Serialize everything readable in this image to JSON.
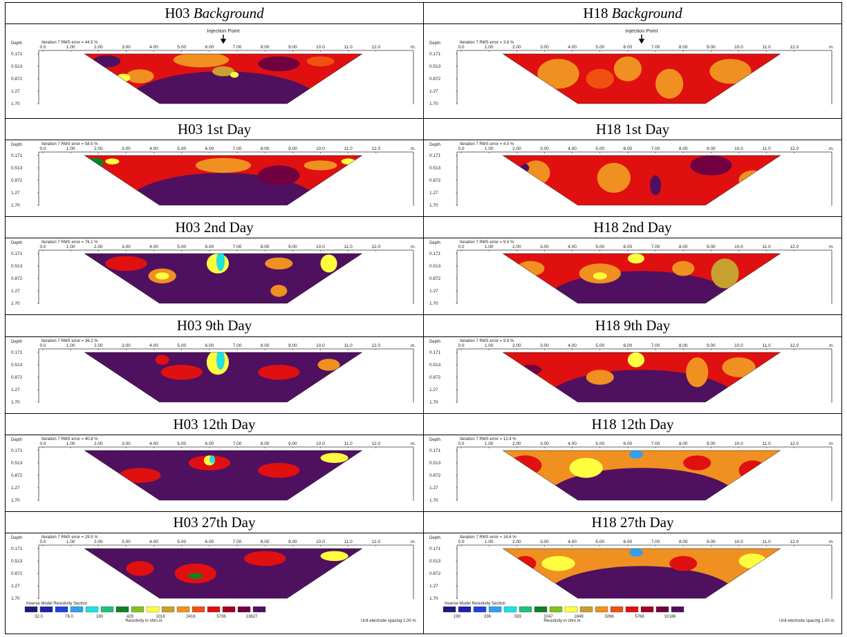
{
  "panels": [
    {
      "title": "H03",
      "suffix": "Background",
      "italic": true,
      "rms": "Iteration 7 RMS error = 44.5 %",
      "injection": true,
      "legend": false
    },
    {
      "title": "H18",
      "suffix": "Background",
      "italic": true,
      "rms": "Iteration 7 RMS error = 3.6 %",
      "injection": true,
      "legend": false
    },
    {
      "title": "H03 1st Day",
      "suffix": "",
      "italic": false,
      "rms": "Iteration 7 RMS error = 58.5 %",
      "injection": false,
      "legend": false
    },
    {
      "title": "H18 1st Day",
      "suffix": "",
      "italic": false,
      "rms": "Iteration 7 RMS error = 4.0 %",
      "injection": false,
      "legend": false
    },
    {
      "title": "H03 2nd Day",
      "suffix": "",
      "italic": false,
      "rms": "Iteration 7 RMS error = 76.1 %",
      "injection": false,
      "legend": false
    },
    {
      "title": "H18 2nd Day",
      "suffix": "",
      "italic": false,
      "rms": "Iteration 7 RMS error = 9.4 %",
      "injection": false,
      "legend": false
    },
    {
      "title": "H03 9th Day",
      "suffix": "",
      "italic": false,
      "rms": "Iteration 7 RMS error = 36.2 %",
      "injection": false,
      "legend": false
    },
    {
      "title": "H18 9th Day",
      "suffix": "",
      "italic": false,
      "rms": "Iteration 7 RMS error = 9.9 %",
      "injection": false,
      "legend": false
    },
    {
      "title": "H03 12th Day",
      "suffix": "",
      "italic": false,
      "rms": "Iteration 7 RMS error = 40.8 %",
      "injection": false,
      "legend": false
    },
    {
      "title": "H18 12th Day",
      "suffix": "",
      "italic": false,
      "rms": "Iteration 7 RMS error = 12.4 %",
      "injection": false,
      "legend": false
    },
    {
      "title": "H03 27th Day",
      "suffix": "",
      "italic": false,
      "rms": "Iteration 7 RMS error = 29.5 %",
      "injection": false,
      "legend": true
    },
    {
      "title": "H18 27th Day",
      "suffix": "",
      "italic": false,
      "rms": "Iteration 7 RMS error = 16.6 %",
      "injection": false,
      "legend": true
    }
  ],
  "axis": {
    "depth_label": "Depth",
    "x_ticks": [
      "0.0",
      "1.00",
      "2.00",
      "3.00",
      "4.00",
      "5.00",
      "6.00",
      "7.00",
      "8.00",
      "9.00",
      "10.0",
      "11.0",
      "12.0"
    ],
    "unit": "m.",
    "depth_ticks": [
      "0.171",
      "0.513",
      "0.872",
      "1.27",
      "1.70"
    ]
  },
  "injection_label": "Injection Point",
  "legend": {
    "title": "Inverse Model Resistivity Section",
    "caption": "Resistivity in ohm.m",
    "spacing": "Unit electrode spacing 1.00 m.",
    "h03_values": [
      "32.0",
      "76.0",
      "180",
      "429",
      "1018",
      "2416",
      "5736",
      "13627"
    ],
    "h18_values": [
      "190",
      "336",
      "593",
      "1047",
      "1849",
      "3266",
      "5768",
      "10186"
    ]
  },
  "colors": {
    "scale": [
      "#1a1a80",
      "#2020b0",
      "#2040e0",
      "#30a0f0",
      "#20e0e0",
      "#20c080",
      "#108020",
      "#80c020",
      "#ffff40",
      "#c8a030",
      "#f09020",
      "#f05010",
      "#e01010",
      "#a00020",
      "#700040",
      "#501060"
    ]
  }
}
